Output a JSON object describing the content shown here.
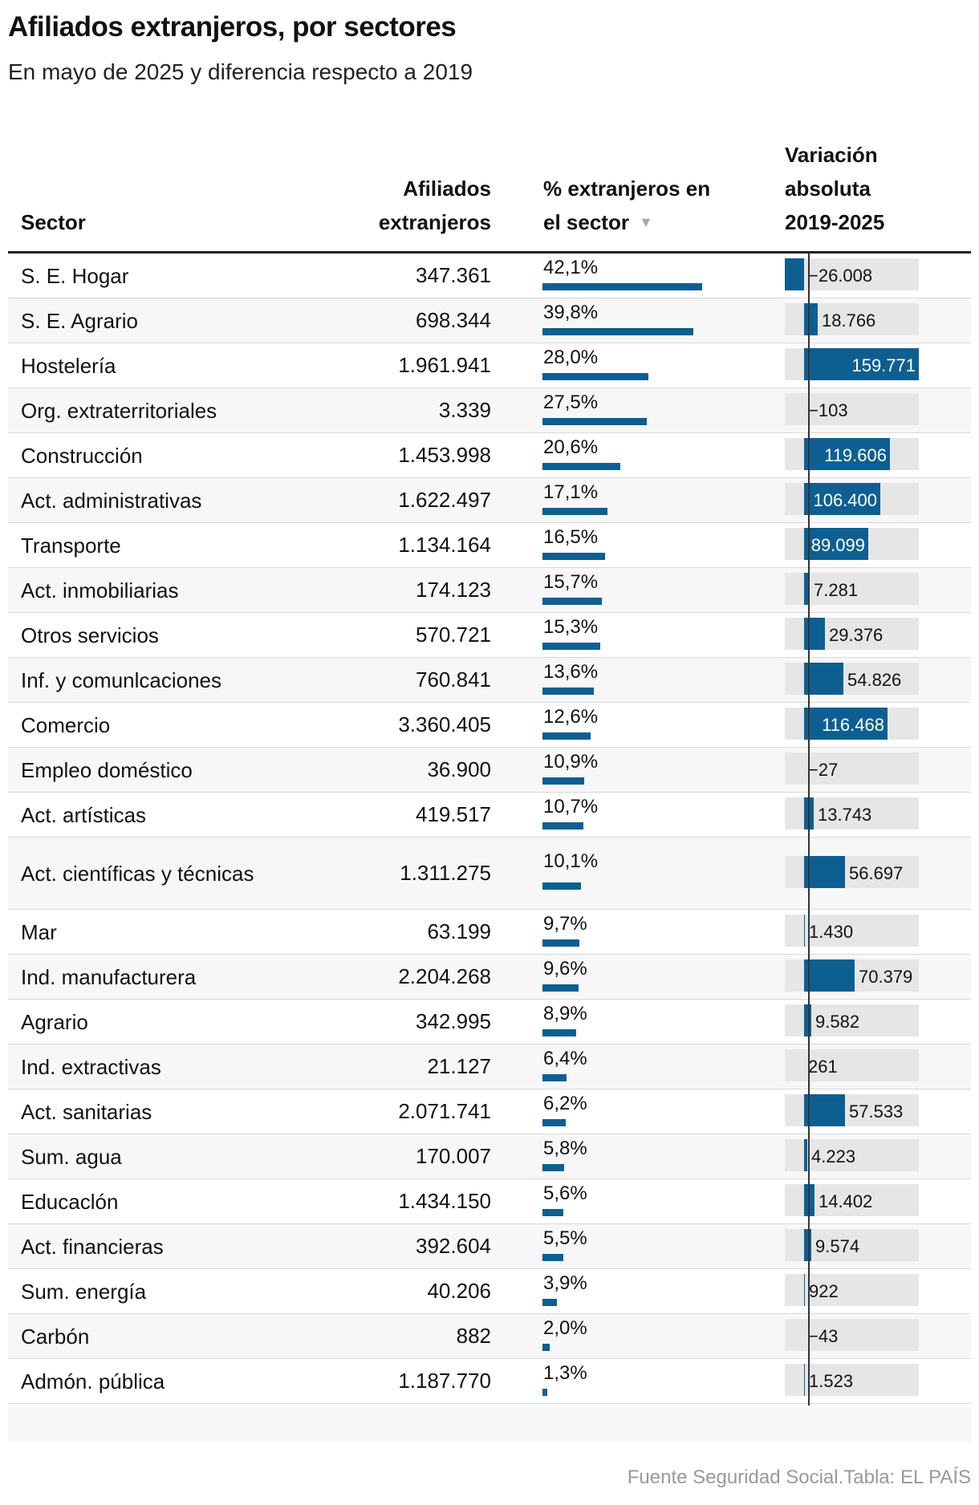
{
  "title": "Afiliados extranjeros, por sectores",
  "subtitle": "En mayo de 2025 y diferencia respecto a 2019",
  "columns": {
    "sector": "Sector",
    "afiliados_line1": "Afiliados",
    "afiliados_line2": "extranjeros",
    "pct_line1": "% extranjeros en",
    "pct_line2": "el sector",
    "sort_arrow": "▼",
    "var_line1": "Variación",
    "var_line2": "absoluta",
    "var_line3": "2019-2025"
  },
  "source": "Fuente Seguridad Social.Tabla: EL PAÍS",
  "colors": {
    "bar": "#0e5f91",
    "track": "#e6e6e6"
  },
  "chart_data": {
    "type": "table",
    "pct_max": 42.1,
    "var_range": [
      -26008,
      159771
    ],
    "rows": [
      {
        "sector": "S. E. Hogar",
        "afiliados": "347.361",
        "pct": 42.1,
        "pct_label": "42,1%",
        "var": -26008,
        "var_label": "−26.008"
      },
      {
        "sector": "S. E. Agrario",
        "afiliados": "698.344",
        "pct": 39.8,
        "pct_label": "39,8%",
        "var": 18766,
        "var_label": "18.766"
      },
      {
        "sector": "Hostelería",
        "afiliados": "1.961.941",
        "pct": 28.0,
        "pct_label": "28,0%",
        "var": 159771,
        "var_label": "159.771"
      },
      {
        "sector": "Org. extraterritoriales",
        "afiliados": "3.339",
        "pct": 27.5,
        "pct_label": "27,5%",
        "var": -103,
        "var_label": "−103"
      },
      {
        "sector": "Construcción",
        "afiliados": "1.453.998",
        "pct": 20.6,
        "pct_label": "20,6%",
        "var": 119606,
        "var_label": "119.606"
      },
      {
        "sector": "Act. administrativas",
        "afiliados": "1.622.497",
        "pct": 17.1,
        "pct_label": "17,1%",
        "var": 106400,
        "var_label": "106.400"
      },
      {
        "sector": "Transporte",
        "afiliados": "1.134.164",
        "pct": 16.5,
        "pct_label": "16,5%",
        "var": 89099,
        "var_label": "89.099"
      },
      {
        "sector": "Act. inmobiliarias",
        "afiliados": "174.123",
        "pct": 15.7,
        "pct_label": "15,7%",
        "var": 7281,
        "var_label": "7.281"
      },
      {
        "sector": "Otros servicios",
        "afiliados": "570.721",
        "pct": 15.3,
        "pct_label": "15,3%",
        "var": 29376,
        "var_label": "29.376"
      },
      {
        "sector": "Inf. y comunlcaciones",
        "afiliados": "760.841",
        "pct": 13.6,
        "pct_label": "13,6%",
        "var": 54826,
        "var_label": "54.826"
      },
      {
        "sector": "Comercio",
        "afiliados": "3.360.405",
        "pct": 12.6,
        "pct_label": "12,6%",
        "var": 116468,
        "var_label": "116.468"
      },
      {
        "sector": "Empleo doméstico",
        "afiliados": "36.900",
        "pct": 10.9,
        "pct_label": "10,9%",
        "var": -27,
        "var_label": "−27"
      },
      {
        "sector": "Act. artísticas",
        "afiliados": "419.517",
        "pct": 10.7,
        "pct_label": "10,7%",
        "var": 13743,
        "var_label": "13.743"
      },
      {
        "sector": "Act. científicas y técnicas",
        "afiliados": "1.311.275",
        "pct": 10.1,
        "pct_label": "10,1%",
        "var": 56697,
        "var_label": "56.697",
        "tall": true
      },
      {
        "sector": "Mar",
        "afiliados": "63.199",
        "pct": 9.7,
        "pct_label": "9,7%",
        "var": 1430,
        "var_label": "1.430"
      },
      {
        "sector": "Ind. manufacturera",
        "afiliados": "2.204.268",
        "pct": 9.6,
        "pct_label": "9,6%",
        "var": 70379,
        "var_label": "70.379"
      },
      {
        "sector": "Agrario",
        "afiliados": "342.995",
        "pct": 8.9,
        "pct_label": "8,9%",
        "var": 9582,
        "var_label": "9.582"
      },
      {
        "sector": "Ind. extractivas",
        "afiliados": "21.127",
        "pct": 6.4,
        "pct_label": "6,4%",
        "var": 261,
        "var_label": "261"
      },
      {
        "sector": "Act. sanitarias",
        "afiliados": "2.071.741",
        "pct": 6.2,
        "pct_label": "6,2%",
        "var": 57533,
        "var_label": "57.533"
      },
      {
        "sector": "Sum. agua",
        "afiliados": "170.007",
        "pct": 5.8,
        "pct_label": "5,8%",
        "var": 4223,
        "var_label": "4.223"
      },
      {
        "sector": "Educaclón",
        "afiliados": "1.434.150",
        "pct": 5.6,
        "pct_label": "5,6%",
        "var": 14402,
        "var_label": "14.402"
      },
      {
        "sector": "Act. financieras",
        "afiliados": "392.604",
        "pct": 5.5,
        "pct_label": "5,5%",
        "var": 9574,
        "var_label": "9.574"
      },
      {
        "sector": "Sum. energía",
        "afiliados": "40.206",
        "pct": 3.9,
        "pct_label": "3,9%",
        "var": 922,
        "var_label": "922"
      },
      {
        "sector": "Carbón",
        "afiliados": "882",
        "pct": 2.0,
        "pct_label": "2,0%",
        "var": -43,
        "var_label": "−43"
      },
      {
        "sector": "Admón. pública",
        "afiliados": "1.187.770",
        "pct": 1.3,
        "pct_label": "1,3%",
        "var": 1523,
        "var_label": "1.523"
      }
    ]
  }
}
